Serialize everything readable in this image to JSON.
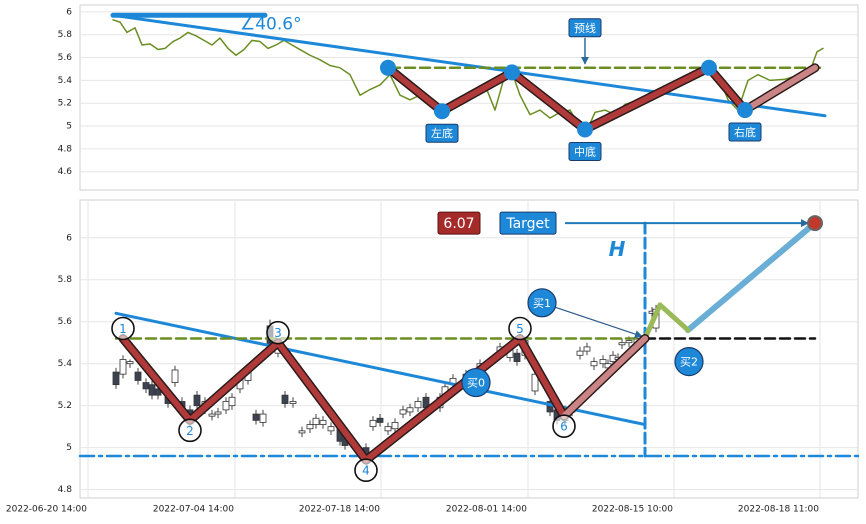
{
  "chart_data": [
    {
      "type": "line",
      "xlim": [
        0,
        778
      ],
      "ylim": [
        4.44,
        6.06
      ],
      "yticks": [
        4.6,
        4.8,
        5.0,
        5.2,
        5.4,
        5.6,
        5.8,
        6.0
      ],
      "price": {
        "color": "#6b8e23",
        "x": [
          33,
          40,
          47,
          55,
          62,
          70,
          78,
          85,
          93,
          100,
          108,
          116,
          124,
          132,
          140,
          148,
          156,
          164,
          172,
          180,
          188,
          196,
          204,
          212,
          220,
          230,
          240,
          250,
          260,
          270,
          280,
          290,
          300,
          310,
          320,
          330,
          340,
          350,
          362,
          375,
          385,
          395,
          405,
          415,
          425,
          432,
          440,
          450,
          460,
          470,
          480,
          490,
          505,
          515,
          525,
          535,
          545,
          560,
          575,
          590,
          605,
          620,
          629,
          638,
          648,
          658,
          668,
          678,
          690,
          705,
          720,
          732,
          737,
          743
        ],
        "values": [
          5.93,
          5.91,
          5.82,
          5.86,
          5.71,
          5.72,
          5.67,
          5.68,
          5.74,
          5.77,
          5.82,
          5.79,
          5.75,
          5.71,
          5.77,
          5.68,
          5.62,
          5.67,
          5.75,
          5.74,
          5.68,
          5.71,
          5.75,
          5.71,
          5.67,
          5.62,
          5.58,
          5.53,
          5.51,
          5.45,
          5.27,
          5.32,
          5.36,
          5.45,
          5.27,
          5.23,
          5.27,
          5.19,
          5.12,
          5.23,
          5.27,
          5.32,
          5.36,
          5.14,
          5.45,
          5.47,
          5.27,
          5.1,
          5.14,
          5.07,
          5.12,
          5.14,
          4.92,
          5.12,
          5.14,
          5.1,
          5.19,
          5.23,
          5.27,
          5.36,
          5.4,
          5.45,
          5.51,
          5.45,
          5.23,
          5.14,
          5.4,
          5.45,
          5.4,
          5.41,
          5.45,
          5.53,
          5.65,
          5.68
        ]
      },
      "zigzag": {
        "color": "#b03a3a",
        "last_color": "#c98585",
        "x": [
          308,
          362,
          432,
          505,
          629,
          665,
          735
        ],
        "values": [
          5.51,
          5.13,
          5.47,
          4.97,
          5.51,
          5.14,
          5.51
        ]
      },
      "lines": [
        {
          "color": "#1e88d8",
          "style": "solid",
          "width": 3,
          "x": [
            33,
            745
          ],
          "values": [
            5.97,
            5.09
          ]
        },
        {
          "color": "#6b8e23",
          "style": "dashed",
          "width": 2.5,
          "x": [
            310,
            745
          ],
          "values": [
            5.51,
            5.51
          ]
        },
        {
          "color": "#1e88d8",
          "style": "solid",
          "width": 5,
          "x": [
            33,
            185
          ],
          "values": [
            5.97,
            5.97
          ]
        }
      ],
      "angle_label": "∠40.6°",
      "annotations": [
        {
          "text": "左底",
          "x": 362,
          "y": 5.13,
          "shape": "below"
        },
        {
          "text": "中底",
          "x": 505,
          "y": 4.97,
          "shape": "below"
        },
        {
          "text": "右底",
          "x": 665,
          "y": 5.14,
          "shape": "below"
        },
        {
          "text": "预线",
          "x": 505,
          "y": 5.51,
          "shape": "above"
        }
      ]
    },
    {
      "type": "candlestick",
      "xlim": [
        0,
        778
      ],
      "ylim": [
        4.76,
        6.18
      ],
      "yticks": [
        4.8,
        5.0,
        5.2,
        5.4,
        5.6,
        5.8,
        6.0
      ],
      "xticks": [
        {
          "value": 8,
          "label": "2022-06-20 14:00"
        },
        {
          "value": 155,
          "label": "2022-07-04 14:00"
        },
        {
          "value": 301,
          "label": "2022-07-18 14:00"
        },
        {
          "value": 448,
          "label": "2022-08-01 14:00"
        },
        {
          "value": 594,
          "label": "2022-08-15 10:00"
        },
        {
          "value": 740,
          "label": "2022-08-18 11:00"
        }
      ],
      "candles": {
        "x": [
          36,
          43,
          50,
          58,
          66,
          72,
          78,
          88,
          95,
          102,
          110,
          117,
          125,
          132,
          138,
          146,
          152,
          160,
          168,
          176,
          183,
          190,
          198,
          205,
          213,
          222,
          230,
          236,
          243,
          251,
          260,
          265,
          286,
          293,
          300,
          308,
          315,
          323,
          330,
          338,
          346,
          360,
          365,
          373,
          386,
          400,
          420,
          430,
          437,
          445,
          455,
          470,
          477,
          485,
          492,
          500,
          507,
          514,
          523,
          528,
          533,
          538,
          542,
          549,
          557,
          572,
          576
        ],
        "open": [
          5.36,
          5.35,
          5.4,
          5.36,
          5.31,
          5.3,
          5.28,
          5.24,
          5.31,
          5.22,
          5.18,
          5.25,
          5.18,
          5.15,
          5.16,
          5.18,
          5.2,
          5.28,
          5.32,
          5.16,
          5.12,
          5.58,
          5.45,
          5.25,
          5.21,
          5.07,
          5.09,
          5.11,
          5.11,
          5.08,
          5.09,
          5.06,
          5.0,
          5.1,
          5.14,
          5.08,
          5.09,
          5.16,
          5.17,
          5.19,
          5.24,
          5.19,
          5.25,
          5.3,
          5.32,
          5.37,
          5.45,
          5.43,
          5.45,
          5.44,
          5.27,
          5.22,
          5.18,
          5.13,
          5.17,
          5.44,
          5.46,
          5.39,
          5.4,
          5.38,
          5.41,
          5.42,
          5.49,
          5.5,
          5.49,
          5.64,
          5.57
        ],
        "close": [
          5.3,
          5.42,
          5.41,
          5.32,
          5.28,
          5.25,
          5.25,
          5.21,
          5.37,
          5.17,
          5.12,
          5.2,
          5.22,
          5.16,
          5.17,
          5.22,
          5.24,
          5.33,
          5.37,
          5.13,
          5.16,
          5.49,
          5.5,
          5.21,
          5.22,
          5.08,
          5.11,
          5.14,
          5.13,
          5.1,
          5.03,
          5.01,
          4.95,
          5.13,
          5.12,
          5.1,
          5.12,
          5.18,
          5.19,
          5.22,
          5.19,
          5.24,
          5.29,
          5.33,
          5.35,
          5.4,
          5.48,
          5.48,
          5.41,
          5.51,
          5.35,
          5.17,
          5.13,
          5.18,
          5.2,
          5.46,
          5.48,
          5.41,
          5.42,
          5.4,
          5.44,
          5.43,
          5.5,
          5.51,
          5.52,
          5.65,
          5.66
        ],
        "high": [
          5.38,
          5.44,
          5.42,
          5.38,
          5.33,
          5.32,
          5.3,
          5.26,
          5.39,
          5.24,
          5.2,
          5.27,
          5.24,
          5.18,
          5.19,
          5.24,
          5.26,
          5.35,
          5.39,
          5.18,
          5.18,
          5.61,
          5.52,
          5.27,
          5.24,
          5.1,
          5.13,
          5.16,
          5.15,
          5.12,
          5.11,
          5.08,
          5.02,
          5.15,
          5.16,
          5.12,
          5.14,
          5.2,
          5.21,
          5.24,
          5.26,
          5.26,
          5.31,
          5.35,
          5.37,
          5.42,
          5.5,
          5.5,
          5.47,
          5.53,
          5.37,
          5.24,
          5.2,
          5.2,
          5.22,
          5.48,
          5.5,
          5.43,
          5.44,
          5.42,
          5.46,
          5.45,
          5.52,
          5.53,
          5.54,
          5.67,
          5.68
        ],
        "low": [
          5.28,
          5.33,
          5.38,
          5.3,
          5.26,
          5.23,
          5.23,
          5.19,
          5.29,
          5.15,
          5.1,
          5.18,
          5.16,
          5.13,
          5.14,
          5.16,
          5.18,
          5.26,
          5.3,
          5.11,
          5.1,
          5.47,
          5.43,
          5.19,
          5.19,
          5.05,
          5.07,
          5.09,
          5.09,
          5.06,
          5.01,
          4.99,
          4.93,
          5.08,
          5.1,
          5.06,
          5.07,
          5.14,
          5.15,
          5.17,
          5.17,
          5.17,
          5.23,
          5.28,
          5.3,
          5.35,
          5.43,
          5.41,
          5.39,
          5.42,
          5.25,
          5.15,
          5.11,
          5.11,
          5.15,
          5.42,
          5.44,
          5.37,
          5.38,
          5.36,
          5.39,
          5.4,
          5.47,
          5.48,
          5.47,
          5.62,
          5.55
        ]
      },
      "zigzag": {
        "color": "#b03a3a",
        "last_color": "#c98585",
        "x": [
          43,
          110,
          198,
          286,
          440,
          484,
          565
        ],
        "values": [
          5.52,
          5.13,
          5.5,
          4.94,
          5.52,
          5.15,
          5.52
        ]
      },
      "point_labels": [
        1,
        2,
        3,
        4,
        5,
        6
      ],
      "lines": [
        {
          "color": "#1e88d8",
          "style": "solid",
          "width": 3,
          "x": [
            36,
            565
          ],
          "values": [
            5.64,
            5.11
          ]
        },
        {
          "color": "#6b8e23",
          "style": "dashed",
          "width": 2.5,
          "x": [
            36,
            565
          ],
          "values": [
            5.52,
            5.52
          ]
        },
        {
          "color": "#1e88d8",
          "style": "dashdot",
          "width": 2.5,
          "x": [
            0,
            778
          ],
          "values": [
            4.96,
            4.96
          ]
        },
        {
          "color": "#1e88d8",
          "style": "dashed",
          "width": 3,
          "x": [
            565,
            565
          ],
          "values": [
            6.07,
            4.96
          ]
        },
        {
          "color": "#111111",
          "style": "dashed",
          "width": 2.5,
          "x": [
            565,
            735
          ],
          "values": [
            5.52,
            5.52
          ]
        },
        {
          "color": "#6aaed6",
          "style": "solid",
          "width": 6,
          "x": [
            608,
            735
          ],
          "values": [
            5.56,
            6.07
          ]
        },
        {
          "color": "#9aba5a",
          "style": "solid",
          "width": 5,
          "x": [
            565,
            580,
            608
          ],
          "values": [
            5.52,
            5.68,
            5.56
          ]
        },
        {
          "color": "#1e7ab8",
          "style": "arrow",
          "width": 2,
          "x": [
            485,
            728
          ],
          "values": [
            6.07,
            6.07
          ]
        },
        {
          "color": "#2a5a8a",
          "style": "arrow",
          "width": 1.2,
          "x": [
            462,
            562
          ],
          "values": [
            5.69,
            5.53
          ]
        }
      ],
      "target": {
        "value": 6.07,
        "x": 735,
        "label_x": 379
      },
      "annotations": [
        {
          "text": "Target",
          "x": 448,
          "y": 6.07,
          "shape": "box"
        },
        {
          "text": "H",
          "x": 537,
          "y": 5.94,
          "shape": "text"
        },
        {
          "text": "买0",
          "x": 396,
          "y": 5.31,
          "shape": "circle"
        },
        {
          "text": "买1",
          "x": 462,
          "y": 5.69,
          "shape": "circle"
        },
        {
          "text": "买2",
          "x": 609,
          "y": 5.41,
          "shape": "circle"
        }
      ]
    }
  ]
}
